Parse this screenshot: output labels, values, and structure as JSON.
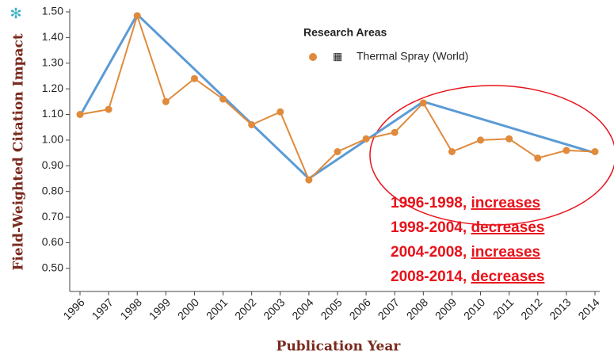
{
  "chart_data": {
    "type": "line",
    "x_label": "Publication Year",
    "y_label": "Field-Weighted Citation Impact",
    "legend_title": "Research Areas",
    "x": [
      1996,
      1997,
      1998,
      1999,
      2000,
      2001,
      2002,
      2003,
      2004,
      2005,
      2006,
      2007,
      2008,
      2009,
      2010,
      2011,
      2012,
      2013,
      2014
    ],
    "series": [
      {
        "name": "Thermal Spray (World)",
        "color": "#e08a3c",
        "values": [
          1.1,
          1.12,
          1.485,
          1.15,
          1.24,
          1.16,
          1.06,
          1.11,
          0.845,
          0.955,
          1.005,
          1.03,
          1.145,
          0.955,
          1.0,
          1.005,
          0.93,
          0.96,
          0.955
        ]
      }
    ],
    "trend_line": {
      "color": "#5b9bd5",
      "x": [
        1996,
        1998,
        2004,
        2008,
        2014
      ],
      "values": [
        1.095,
        1.49,
        0.85,
        1.15,
        0.95
      ]
    },
    "xlim": [
      1996,
      2014
    ],
    "xticks": [
      1996,
      1997,
      1998,
      1999,
      2000,
      2001,
      2002,
      2003,
      2004,
      2005,
      2006,
      2007,
      2008,
      2009,
      2010,
      2011,
      2012,
      2013,
      2014
    ],
    "ylim": [
      0.41,
      1.5
    ],
    "yticks": [
      {
        "value": 0.5,
        "label": "0.50"
      },
      {
        "value": 0.6,
        "label": "0.60"
      },
      {
        "value": 0.7,
        "label": "0.70"
      },
      {
        "value": 0.8,
        "label": "0.80"
      },
      {
        "value": 0.9,
        "label": "0.90"
      },
      {
        "value": 1.0,
        "label": "1.00"
      },
      {
        "value": 1.1,
        "label": "1.10"
      },
      {
        "value": 1.2,
        "label": "1.20"
      },
      {
        "value": 1.3,
        "label": "1.30"
      },
      {
        "value": 1.4,
        "label": "1.40"
      },
      {
        "value": 1.5,
        "label": "1.50"
      }
    ],
    "grid": false,
    "annotations": [
      {
        "text": "1996-1998,",
        "emphasis": "increases"
      },
      {
        "text": "1998-2004,",
        "emphasis": "decreases"
      },
      {
        "text": "2004-2008,",
        "emphasis": "increases"
      },
      {
        "text": "2008-2014,",
        "emphasis": "decreases"
      }
    ]
  }
}
